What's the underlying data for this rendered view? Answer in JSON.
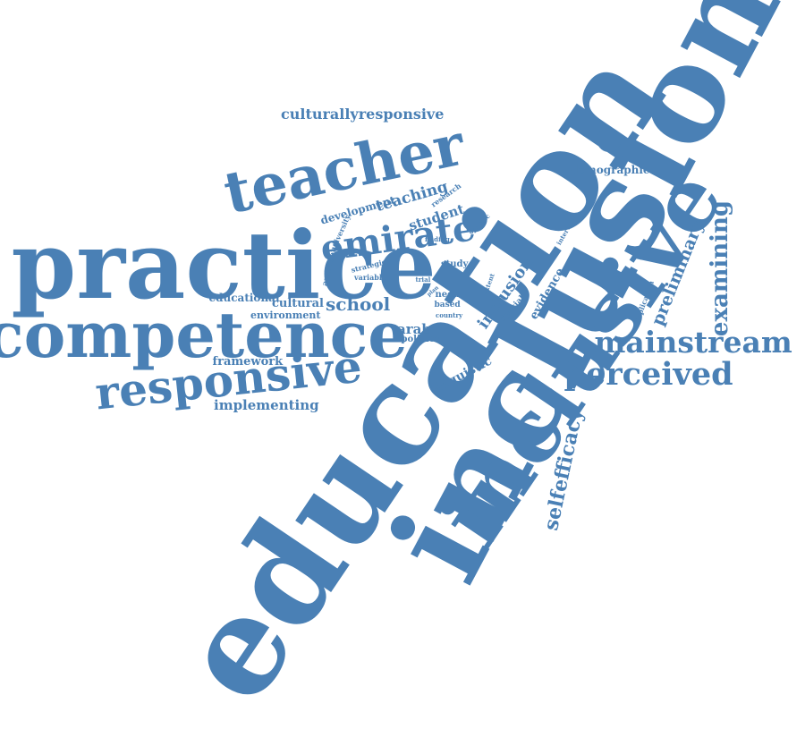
{
  "color": "#4a80b5",
  "words": [
    {
      "id": "education",
      "text": "education"
    },
    {
      "id": "inclusion",
      "text": "inclusion"
    },
    {
      "id": "practice",
      "text": "practice"
    },
    {
      "id": "inclusive",
      "text": "inclusive"
    },
    {
      "id": "competence",
      "text": "competence"
    },
    {
      "id": "teacher",
      "text": "teacher"
    },
    {
      "id": "responsive",
      "text": "responsive"
    },
    {
      "id": "emirate",
      "text": "emirate"
    },
    {
      "id": "mainstream",
      "text": "mainstream"
    },
    {
      "id": "perceived",
      "text": "perceived"
    },
    {
      "id": "examining",
      "text": "examining"
    },
    {
      "id": "selfefficacy",
      "text": "selfefficacy"
    },
    {
      "id": "culturallyresponsive",
      "text": "culturallyresponsive"
    },
    {
      "id": "preliminary",
      "text": "preliminary"
    },
    {
      "id": "school",
      "text": "school"
    },
    {
      "id": "implementing",
      "text": "implementing"
    },
    {
      "id": "framework",
      "text": "framework"
    },
    {
      "id": "teaching",
      "text": "teaching"
    },
    {
      "id": "student",
      "text": "student"
    },
    {
      "id": "demographic",
      "text": "demographic"
    },
    {
      "id": "linguistic",
      "text": "linguistic"
    },
    {
      "id": "inclusion_small",
      "text": "inclusion"
    },
    {
      "id": "arab",
      "text": "arab"
    },
    {
      "id": "cultural",
      "text": "cultural"
    },
    {
      "id": "environment",
      "text": "environment"
    },
    {
      "id": "educational",
      "text": "educational"
    },
    {
      "id": "development",
      "text": "development"
    },
    {
      "id": "policies",
      "text": "policies"
    },
    {
      "id": "evidence",
      "text": "evidence"
    },
    {
      "id": "study",
      "text": "study"
    },
    {
      "id": "need",
      "text": "need"
    },
    {
      "id": "based",
      "text": "based"
    },
    {
      "id": "special",
      "text": "special"
    },
    {
      "id": "implication",
      "text": "implication"
    },
    {
      "id": "ambitious",
      "text": "ambitious"
    },
    {
      "id": "strategic",
      "text": "strategic"
    },
    {
      "id": "variable",
      "text": "variable"
    },
    {
      "id": "diversity",
      "text": "diversity"
    },
    {
      "id": "research",
      "text": "research"
    },
    {
      "id": "specific",
      "text": "specific"
    },
    {
      "id": "interview",
      "text": "interview"
    },
    {
      "id": "finding",
      "text": "finding"
    },
    {
      "id": "trial",
      "text": "trial"
    },
    {
      "id": "country",
      "text": "country"
    },
    {
      "id": "extent",
      "text": "extent"
    },
    {
      "id": "plan",
      "text": "plan"
    }
  ]
}
